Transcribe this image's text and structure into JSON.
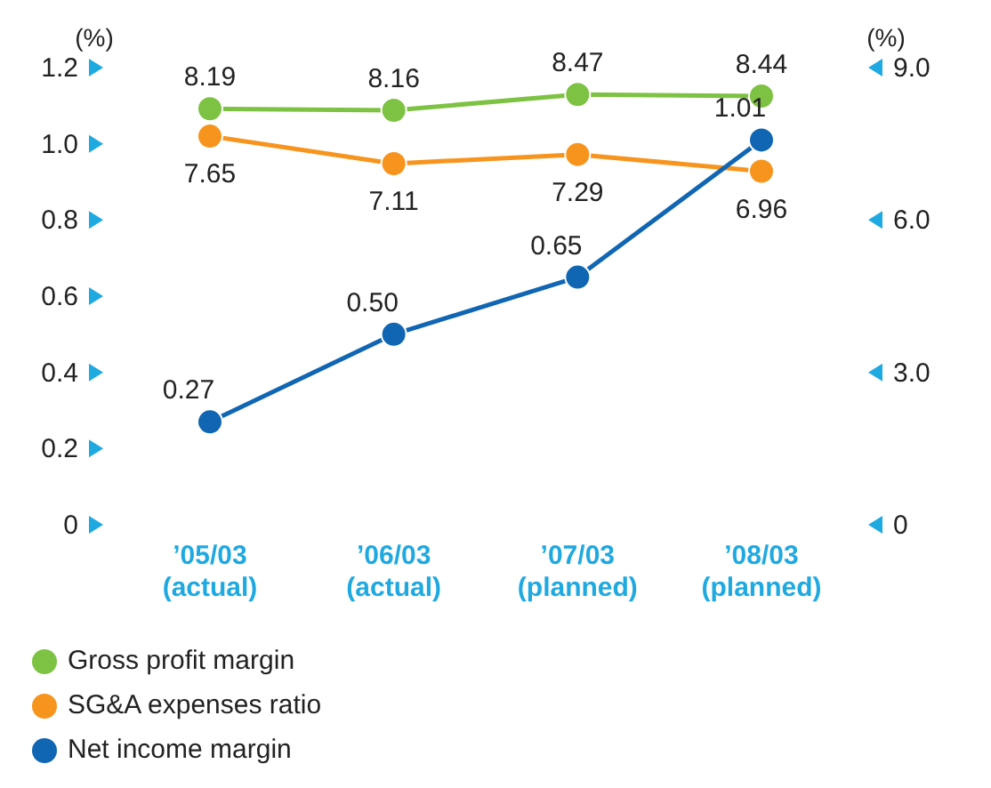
{
  "chart_data": {
    "type": "line",
    "ylabel": "(%)",
    "y2label": "(%)",
    "categories": [
      "’05/03\n(actual)",
      "’06/03\n(actual)",
      "’07/03\n(planned)",
      "’08/03\n(planned)"
    ],
    "series": [
      {
        "name": "Gross profit margin",
        "color": "#7dc242",
        "axis": "y2",
        "values": [
          8.19,
          8.16,
          8.47,
          8.44
        ]
      },
      {
        "name": "SG&A expenses ratio",
        "color": "#f7941d",
        "axis": "y2",
        "values": [
          7.65,
          7.11,
          7.29,
          6.96
        ]
      },
      {
        "name": "Net income margin",
        "color": "#1066b3",
        "values": [
          0.27,
          0.5,
          0.65,
          1.01
        ],
        "value_labels": [
          "0.27",
          "0.50",
          "0.65",
          "1.01"
        ]
      }
    ],
    "ylim": [
      0,
      1.2
    ],
    "yticks": [
      0,
      0.2,
      0.4,
      0.6,
      0.8,
      {
        "value": 1,
        "label": "1.0"
      },
      1.2
    ],
    "y2lim": [
      0,
      9
    ],
    "y2ticks": [
      0,
      {
        "value": 3,
        "label": "3.0"
      },
      {
        "value": 6,
        "label": "6.0"
      },
      {
        "value": 9,
        "label": "9.0"
      }
    ],
    "data_labels": true,
    "marker": "circle",
    "line_style": "solid",
    "grid": false,
    "legend": "bottom left"
  }
}
